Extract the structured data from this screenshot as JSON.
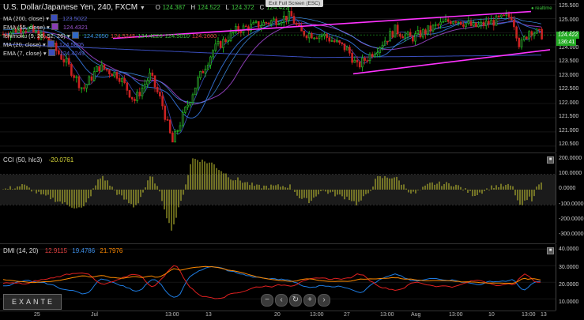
{
  "header": {
    "title": "U.S. Dollar/Japanese Yen, 240, FXCM",
    "o_label": "O",
    "o_value": "124.387",
    "h_label": "H",
    "h_value": "124.522",
    "l_label": "L",
    "l_value": "124.372",
    "c_label": "C",
    "c_value": "124.422",
    "exit_button": "Exit Full Screen (ESC)",
    "realtime": "realtime"
  },
  "legend": [
    {
      "name": "MA (200, close)",
      "value": "123.5022",
      "color": "#3a4dbb"
    },
    {
      "name": "EMA (55, close)",
      "value": "124.4321",
      "color": "#8a3db3"
    },
    {
      "name": "Ichimoku (9, 26, 52, 26)",
      "value": "124.2650",
      "value2": "124.5245",
      "value3": "124.4220",
      "value4": "124.5010",
      "value5": "124.1660",
      "color": "#2f69c6"
    },
    {
      "name": "MA (20, close)",
      "value": "124.5805",
      "color": "#3a4dbb"
    },
    {
      "name": "EMA (7, close)",
      "value": "124.4249",
      "color": "#3a4dbb"
    }
  ],
  "cci": {
    "title": "CCI (50, hlc3)",
    "value": "-20.0761"
  },
  "dmi": {
    "title": "DMI (14, 20)",
    "value1": "12.9115",
    "value2": "19.4786",
    "value3": "21.7976"
  },
  "price_axis": [
    "125.500",
    "125.000",
    "124.500",
    "124.000",
    "123.500",
    "123.000",
    "122.500",
    "122.000",
    "121.500",
    "121.000",
    "120.500"
  ],
  "price_badges": {
    "last": "124.422",
    "timer": "136:41"
  },
  "cci_axis": [
    "200.0000",
    "100.0000",
    "0.0000",
    "-100.0000",
    "-200.0000",
    "-300.0000"
  ],
  "dmi_axis": [
    "40.0000",
    "30.0000",
    "20.0000",
    "10.0000"
  ],
  "time_axis": [
    "25",
    "Jul",
    "13:00",
    "13",
    "20",
    "13:00",
    "27",
    "13:00",
    "Aug",
    "13:00",
    "10",
    "13:00",
    "13"
  ],
  "logo": "EXANTE",
  "colors": {
    "up": "#22cc22",
    "down": "#cc2222",
    "channel": "#ff33ff",
    "cci": "#c8c832",
    "dmi_plus": "#1e7be0",
    "dmi_minus": "#e02020",
    "adx": "#ff8a00"
  }
}
